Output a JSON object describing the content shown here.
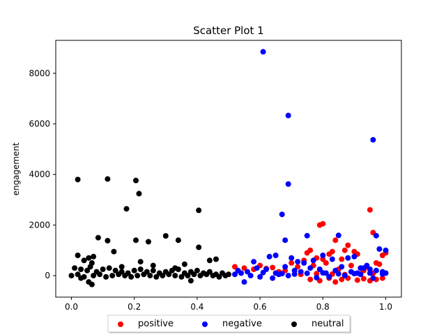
{
  "chart_data": {
    "type": "scatter",
    "title": "Scatter Plot 1",
    "xlabel": "",
    "ylabel": "engagement",
    "xlim": [
      -0.05,
      1.05
    ],
    "ylim": [
      -850,
      9300
    ],
    "xticks": [
      0.0,
      0.2,
      0.4,
      0.6,
      0.8,
      1.0
    ],
    "xtick_labels": [
      "0.0",
      "0.2",
      "0.4",
      "0.6",
      "0.8",
      "1.0"
    ],
    "yticks": [
      0,
      2000,
      4000,
      6000,
      8000
    ],
    "ytick_labels": [
      "0",
      "2000",
      "4000",
      "6000",
      "8000"
    ],
    "grid": false,
    "legend": {
      "position": "bottom-center",
      "columns": 3
    },
    "series": [
      {
        "name": "positive",
        "color": "#ff0000",
        "x": [
          0.52,
          0.55,
          0.58,
          0.6,
          0.62,
          0.64,
          0.66,
          0.68,
          0.7,
          0.72,
          0.74,
          0.75,
          0.76,
          0.77,
          0.78,
          0.79,
          0.8,
          0.8,
          0.81,
          0.82,
          0.83,
          0.84,
          0.85,
          0.86,
          0.87,
          0.88,
          0.89,
          0.9,
          0.91,
          0.92,
          0.93,
          0.94,
          0.95,
          0.96,
          0.97,
          0.98,
          0.99,
          1.0,
          0.76,
          0.79,
          0.82,
          0.84,
          0.86,
          0.88,
          0.91,
          0.93,
          0.95,
          0.97,
          0.99,
          0.73,
          0.78,
          0.83,
          0.87,
          0.92,
          0.96
        ],
        "y": [
          350,
          300,
          250,
          400,
          280,
          320,
          150,
          200,
          500,
          350,
          600,
          900,
          1000,
          400,
          700,
          2000,
          2050,
          650,
          500,
          850,
          950,
          1400,
          250,
          650,
          1000,
          1200,
          400,
          950,
          850,
          300,
          200,
          350,
          2600,
          1700,
          500,
          450,
          800,
          900,
          -150,
          -200,
          -100,
          -250,
          -150,
          -100,
          -180,
          -120,
          -200,
          -150,
          -100,
          50,
          80,
          60,
          40,
          70,
          90
        ]
      },
      {
        "name": "negative",
        "color": "#0000ff",
        "x": [
          0.61,
          0.69,
          0.96,
          0.69,
          0.67,
          0.68,
          0.75,
          0.85,
          0.97,
          0.98,
          1.0,
          0.55,
          0.58,
          0.63,
          0.65,
          0.7,
          0.72,
          0.74,
          0.77,
          0.8,
          0.83,
          0.88,
          0.9,
          0.92,
          0.94,
          0.53,
          0.56,
          0.59,
          0.62,
          0.65,
          0.68,
          0.71,
          0.73,
          0.76,
          0.79,
          0.81,
          0.84,
          0.86,
          0.89,
          0.91,
          0.93,
          0.95,
          0.97,
          0.99,
          1.0,
          0.52,
          0.57,
          0.6,
          0.64,
          0.66,
          0.69,
          0.78,
          0.82,
          0.87,
          0.92,
          0.96,
          0.54,
          0.61,
          0.67,
          0.71,
          0.75,
          0.8,
          0.85,
          0.9,
          0.95,
          0.99
        ],
        "y": [
          8850,
          6330,
          5370,
          3620,
          2420,
          1400,
          1580,
          1590,
          1580,
          1050,
          1000,
          -250,
          550,
          750,
          800,
          700,
          550,
          500,
          600,
          800,
          650,
          700,
          750,
          300,
          400,
          200,
          150,
          300,
          250,
          100,
          350,
          200,
          150,
          300,
          250,
          100,
          200,
          350,
          150,
          100,
          300,
          250,
          200,
          150,
          100,
          50,
          0,
          -50,
          -100,
          50,
          0,
          -80,
          -50,
          0,
          50,
          -100,
          100,
          120,
          80,
          60,
          90,
          110,
          70,
          80,
          100,
          60
        ]
      },
      {
        "name": "neutral",
        "color": "#000000",
        "x": [
          0.02,
          0.115,
          0.205,
          0.215,
          0.175,
          0.405,
          0.085,
          0.3,
          0.115,
          0.205,
          0.245,
          0.34,
          0.405,
          0.135,
          0.02,
          0.04,
          0.055,
          0.065,
          0.07,
          0.16,
          0.22,
          0.26,
          0.33,
          0.36,
          0.44,
          0.46,
          0.01,
          0.03,
          0.05,
          0.06,
          0.08,
          0.1,
          0.12,
          0.14,
          0.16,
          0.18,
          0.2,
          0.22,
          0.24,
          0.26,
          0.28,
          0.3,
          0.32,
          0.34,
          0.36,
          0.38,
          0.4,
          0.42,
          0.44,
          0.46,
          0.48,
          0.5,
          0.0,
          0.02,
          0.04,
          0.07,
          0.09,
          0.11,
          0.13,
          0.15,
          0.17,
          0.19,
          0.21,
          0.23,
          0.25,
          0.27,
          0.29,
          0.31,
          0.33,
          0.35,
          0.37,
          0.39,
          0.41,
          0.43,
          0.45,
          0.47,
          0.49,
          0.065,
          0.055,
          0.38,
          0.03
        ],
        "y": [
          3800,
          3820,
          3760,
          3240,
          2640,
          2580,
          1500,
          1570,
          1380,
          1400,
          1340,
          1400,
          1120,
          950,
          800,
          600,
          700,
          500,
          750,
          350,
          550,
          400,
          300,
          450,
          600,
          650,
          300,
          250,
          200,
          350,
          150,
          250,
          300,
          200,
          150,
          100,
          200,
          250,
          150,
          200,
          100,
          150,
          200,
          250,
          100,
          150,
          200,
          100,
          150,
          50,
          100,
          50,
          0,
          50,
          -50,
          0,
          50,
          -50,
          0,
          50,
          0,
          -50,
          0,
          50,
          0,
          -50,
          0,
          50,
          0,
          -50,
          0,
          50,
          0,
          50,
          0,
          -50,
          0,
          -350,
          -250,
          -200,
          -100
        ]
      }
    ]
  }
}
